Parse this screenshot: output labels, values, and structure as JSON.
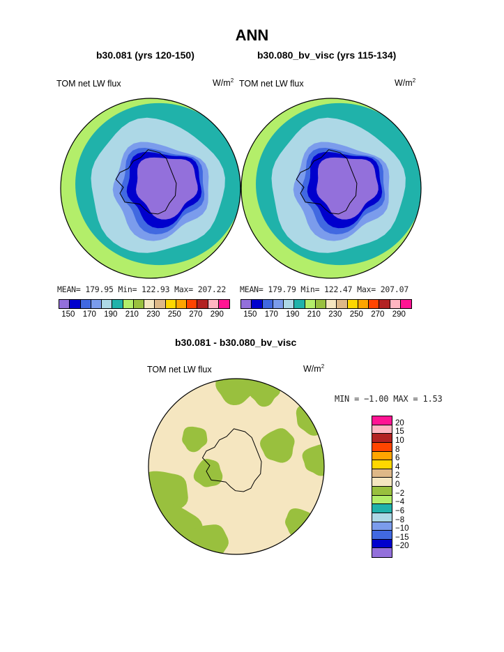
{
  "page": {
    "title": "ANN"
  },
  "colors": {
    "panel": [
      "#9370DB",
      "#0000CD",
      "#4169E1",
      "#7B9CEC",
      "#ADD8E6",
      "#20B2AA",
      "#B3EE6A",
      "#99C03E",
      "#F5E6C0",
      "#DEB887",
      "#FFD700",
      "#FFA500",
      "#FF4500",
      "#B22222",
      "#FFB6C1",
      "#FF1493"
    ],
    "diff": [
      "#9370DB",
      "#0000CD",
      "#4169E1",
      "#7B9CEC",
      "#ADD8E6",
      "#20B2AA",
      "#B3EE6A",
      "#99C03E",
      "#F5E6C0",
      "#DEB887",
      "#FFD700",
      "#FFA500",
      "#FF4500",
      "#B22222",
      "#FFB6C1",
      "#FF1493"
    ]
  },
  "chart_data": [
    {
      "type": "heatmap",
      "title": "b30.081 (yrs 120-150)",
      "field": "TOM net LW flux",
      "units": "W/m2",
      "stats": "MEAN= 179.95  Min= 122.93  Max= 207.22",
      "mean": 179.95,
      "min": 122.93,
      "max": 207.22,
      "colorbar_levels": [
        150,
        160,
        170,
        180,
        190,
        200,
        210,
        220,
        230,
        240,
        250,
        260,
        270,
        280,
        290
      ],
      "colorbar_labels": [
        "150",
        "170",
        "190",
        "210",
        "230",
        "250",
        "270",
        "290"
      ],
      "projection": "south polar stereographic"
    },
    {
      "type": "heatmap",
      "title": "b30.080_bv_visc (yrs 115-134)",
      "field": "TOM net LW flux",
      "units": "W/m2",
      "stats": "MEAN= 179.79  Min= 122.47  Max= 207.07",
      "mean": 179.79,
      "min": 122.47,
      "max": 207.07,
      "colorbar_levels": [
        150,
        160,
        170,
        180,
        190,
        200,
        210,
        220,
        230,
        240,
        250,
        260,
        270,
        280,
        290
      ],
      "colorbar_labels": [
        "150",
        "170",
        "190",
        "210",
        "230",
        "250",
        "270",
        "290"
      ],
      "projection": "south polar stereographic"
    },
    {
      "type": "heatmap",
      "title": "b30.081 - b30.080_bv_visc",
      "field": "TOM net LW flux",
      "units": "W/m2",
      "stats": "MIN =  −1.00 MAX =    1.53",
      "min": -1.0,
      "max": 1.53,
      "colorbar_levels": [
        -20,
        -15,
        -10,
        -8,
        -6,
        -4,
        -2,
        0,
        2,
        4,
        6,
        8,
        10,
        15,
        20
      ],
      "colorbar_labels": [
        "20",
        "15",
        "10",
        "8",
        "6",
        "4",
        "2",
        "0",
        "−2",
        "−4",
        "−6",
        "−8",
        "−10",
        "−15",
        "−20"
      ],
      "projection": "south polar stereographic"
    }
  ]
}
